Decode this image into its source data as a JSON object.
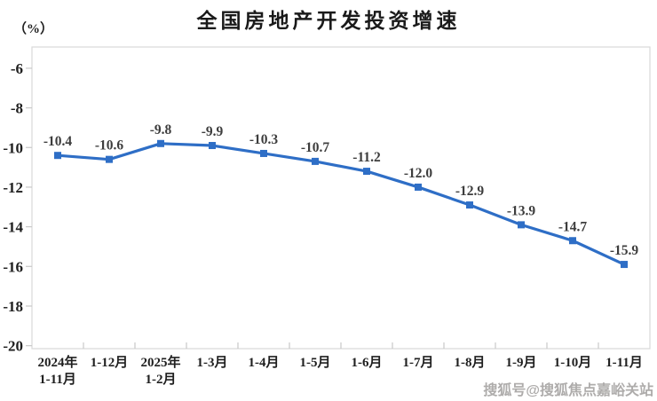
{
  "title": "全国房地产开发投资增速",
  "unit_label": "（%）",
  "watermark": "搜狐号@搜狐焦点嘉峪关站",
  "colors": {
    "line": "#2e6ec6",
    "marker": "#2e6ec6",
    "border": "#d9d9d9",
    "tick": "#c9c9c9",
    "axis_text": "#1f1f1f",
    "data_label_text": "#3d3d3d",
    "title_text": "#1a1a1a",
    "watermark_text": "#aeacab"
  },
  "chart_data": {
    "type": "line",
    "title": "全国房地产开发投资增速",
    "xlabel": "",
    "ylabel": "（%）",
    "categories": [
      "2024年\n1-11月",
      "1-12月",
      "2025年\n1-2月",
      "1-3月",
      "1-4月",
      "1-5月",
      "1-6月",
      "1-7月",
      "1-8月",
      "1-9月",
      "1-10月",
      "1-11月"
    ],
    "values": [
      -10.4,
      -10.6,
      -9.8,
      -9.9,
      -10.3,
      -10.7,
      -11.2,
      -12.0,
      -12.9,
      -13.9,
      -14.7,
      -15.9
    ],
    "data_labels": [
      "-10.4",
      "-10.6",
      "-9.8",
      "-9.9",
      "-10.3",
      "-10.7",
      "-11.2",
      "-12.0",
      "-12.9",
      "-13.9",
      "-14.7",
      "-15.9"
    ],
    "y_ticks": [
      -6,
      -8,
      -10,
      -12,
      -14,
      -16,
      -18,
      -20
    ],
    "ylim": [
      -20.15,
      -4.93
    ],
    "grid": false,
    "legend": "none",
    "marker_shape": "square"
  }
}
